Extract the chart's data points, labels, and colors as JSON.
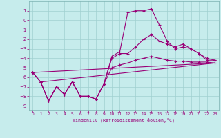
{
  "background_color": "#c6ecec",
  "grid_color": "#a0d0d0",
  "line_color": "#990077",
  "xlabel": "Windchill (Refroidissement éolien,°C)",
  "xlim": [
    -0.5,
    23.5
  ],
  "ylim": [
    -9.5,
    2.0
  ],
  "yticks": [
    1,
    0,
    -1,
    -2,
    -3,
    -4,
    -5,
    -6,
    -7,
    -8,
    -9
  ],
  "xticks": [
    0,
    1,
    2,
    3,
    4,
    5,
    6,
    7,
    8,
    9,
    10,
    11,
    12,
    13,
    14,
    15,
    16,
    17,
    18,
    19,
    20,
    21,
    22,
    23
  ],
  "series_spike_x": [
    0,
    1,
    2,
    3,
    4,
    5,
    6,
    7,
    8,
    9,
    10,
    11,
    12,
    13,
    14,
    15,
    16,
    17,
    18,
    19,
    20,
    21,
    22,
    23
  ],
  "series_spike_y": [
    -5.5,
    -6.5,
    -8.5,
    -7.0,
    -7.8,
    -6.5,
    -8.0,
    -8.0,
    -8.3,
    -6.7,
    -3.8,
    -3.3,
    0.8,
    1.0,
    1.0,
    1.2,
    -0.5,
    -2.2,
    -3.0,
    -2.8,
    -3.0,
    -3.5,
    -4.2,
    -4.2
  ],
  "series_mid_x": [
    0,
    1,
    2,
    3,
    4,
    5,
    6,
    7,
    8,
    9,
    10,
    11,
    12,
    13,
    14,
    15,
    16,
    17,
    18,
    19,
    20,
    21,
    22,
    23
  ],
  "series_mid_y": [
    -5.5,
    -6.5,
    -8.5,
    -7.0,
    -7.8,
    -6.5,
    -8.0,
    -8.0,
    -8.3,
    -6.7,
    -4.0,
    -3.5,
    -3.5,
    -2.8,
    -2.0,
    -1.5,
    -2.2,
    -2.5,
    -2.8,
    -2.5,
    -3.0,
    -3.5,
    -4.0,
    -4.2
  ],
  "series_low_x": [
    0,
    1,
    2,
    3,
    4,
    5,
    6,
    7,
    8,
    9,
    10,
    11,
    12,
    13,
    14,
    15,
    16,
    17,
    18,
    19,
    20,
    21,
    22,
    23
  ],
  "series_low_y": [
    -5.5,
    -6.5,
    -8.5,
    -7.0,
    -7.8,
    -6.5,
    -8.0,
    -8.0,
    -8.3,
    -6.7,
    -5.0,
    -4.7,
    -4.5,
    -4.2,
    -4.0,
    -3.8,
    -4.0,
    -4.2,
    -4.3,
    -4.3,
    -4.4,
    -4.4,
    -4.4,
    -4.5
  ],
  "trend1_x": [
    0,
    23
  ],
  "trend1_y": [
    -5.5,
    -4.5
  ],
  "trend2_x": [
    1,
    23
  ],
  "trend2_y": [
    -6.5,
    -4.5
  ]
}
